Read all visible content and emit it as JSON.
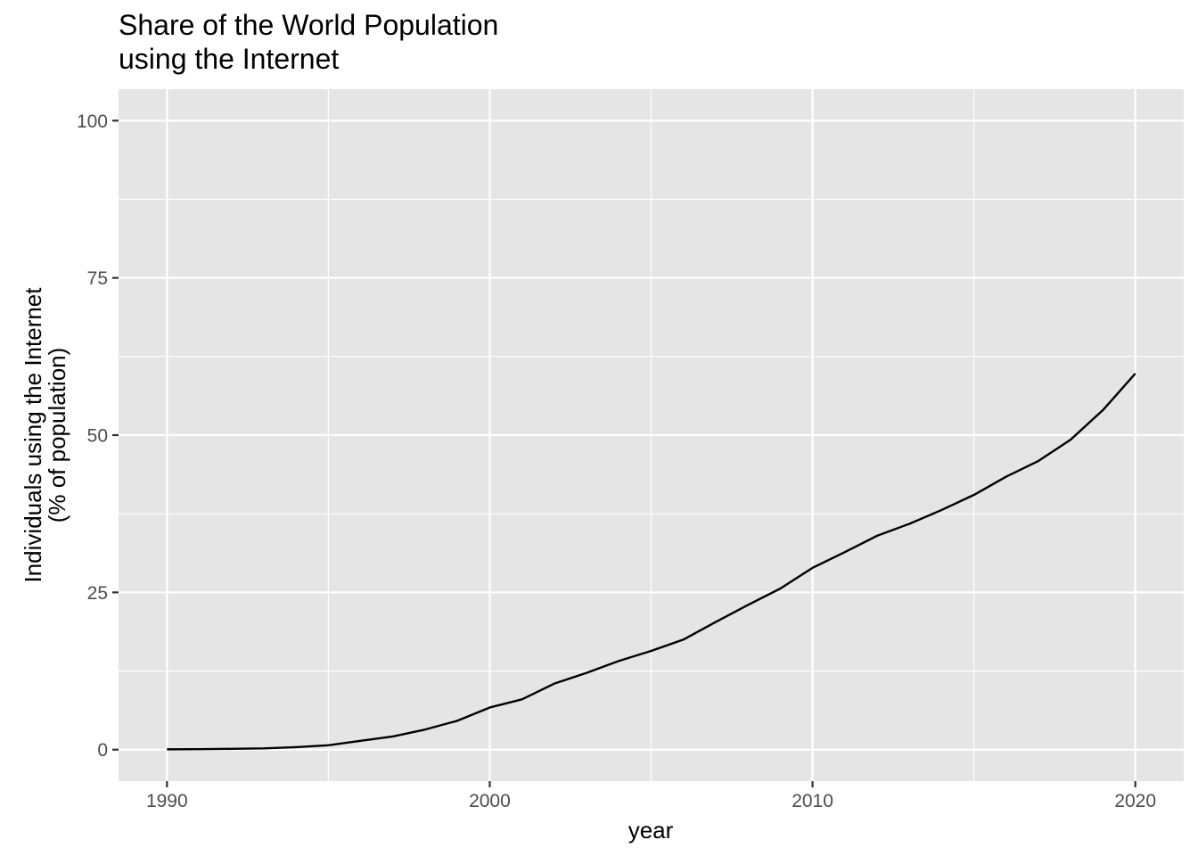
{
  "chart_data": {
    "type": "line",
    "title": [
      "Share of the World Population",
      "using the Internet"
    ],
    "xlabel": "year",
    "ylabel": [
      "Individuals using the Internet",
      "(% of population)"
    ],
    "xlim": [
      1988.5,
      2021.5
    ],
    "ylim": [
      -5,
      105
    ],
    "x_ticks": [
      1990,
      2000,
      2010,
      2020
    ],
    "y_ticks": [
      0,
      25,
      50,
      75,
      100
    ],
    "grid": true,
    "background": "#e5e5e5",
    "line_color": "#000000",
    "series": [
      {
        "x": [
          1990,
          1991,
          1992,
          1993,
          1994,
          1995,
          1996,
          1997,
          1998,
          1999,
          2000,
          2001,
          2002,
          2003,
          2004,
          2005,
          2006,
          2007,
          2008,
          2009,
          2010,
          2011,
          2012,
          2013,
          2014,
          2015,
          2016,
          2017,
          2018,
          2019,
          2020
        ],
        "values": [
          0.05,
          0.08,
          0.13,
          0.2,
          0.4,
          0.7,
          1.4,
          2.1,
          3.2,
          4.6,
          6.7,
          8.0,
          10.5,
          12.2,
          14.1,
          15.7,
          17.5,
          20.3,
          23.0,
          25.6,
          28.9,
          31.4,
          34.0,
          35.9,
          38.1,
          40.5,
          43.4,
          45.9,
          49.3,
          54.0,
          59.8
        ]
      }
    ]
  }
}
